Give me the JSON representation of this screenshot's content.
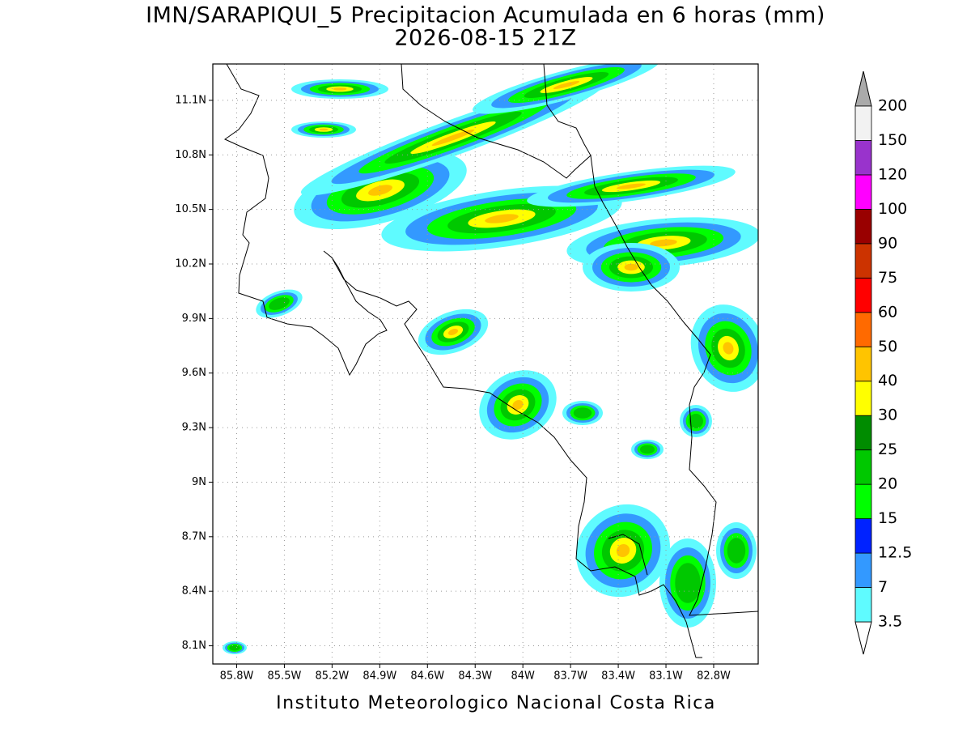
{
  "title": "IMN/SARAPIQUI_5 Precipitacion Acumulada en 6 horas (mm)",
  "subtitle": "2026-08-15 21Z",
  "map": {
    "xlim": [
      -85.95,
      -82.52
    ],
    "ylim": [
      8.0,
      11.3
    ],
    "grid": true,
    "xticks": [
      {
        "value": -85.8,
        "label": "85.8W"
      },
      {
        "value": -85.5,
        "label": "85.5W"
      },
      {
        "value": -85.2,
        "label": "85.2W"
      },
      {
        "value": -84.9,
        "label": "84.9W"
      },
      {
        "value": -84.6,
        "label": "84.6W"
      },
      {
        "value": -84.3,
        "label": "84.3W"
      },
      {
        "value": -84.0,
        "label": "84W"
      },
      {
        "value": -83.7,
        "label": "83.7W"
      },
      {
        "value": -83.4,
        "label": "83.4W"
      },
      {
        "value": -83.1,
        "label": "83.1W"
      },
      {
        "value": -82.8,
        "label": "82.8W"
      }
    ],
    "yticks": [
      {
        "value": 8.1,
        "label": "8.1N"
      },
      {
        "value": 8.4,
        "label": "8.4N"
      },
      {
        "value": 8.7,
        "label": "8.7N"
      },
      {
        "value": 9.0,
        "label": "9N"
      },
      {
        "value": 9.3,
        "label": "9.3N"
      },
      {
        "value": 9.6,
        "label": "9.6N"
      },
      {
        "value": 9.9,
        "label": "9.9N"
      },
      {
        "value": 10.2,
        "label": "10.2N"
      },
      {
        "value": 10.5,
        "label": "10.5N"
      },
      {
        "value": 10.8,
        "label": "10.8N"
      },
      {
        "value": 11.1,
        "label": "11.1N"
      }
    ]
  },
  "colorbar": {
    "levels": [
      3.5,
      7,
      12.5,
      15,
      20,
      25,
      30,
      40,
      50,
      60,
      75,
      90,
      100,
      120,
      150,
      200
    ],
    "colors": [
      "#5ffbff",
      "#3399ff",
      "#0022ff",
      "#00ff00",
      "#00c800",
      "#008c00",
      "#ffff00",
      "#ffc400",
      "#ff6a00",
      "#ff0000",
      "#cc3300",
      "#990000",
      "#ff00ff",
      "#9933cc",
      "#f2f2f2"
    ],
    "under_color": "#ffffff",
    "over_color": "#aaaaaa"
  },
  "credit": "Instituto Meteorologico Nacional Costa Rica"
}
